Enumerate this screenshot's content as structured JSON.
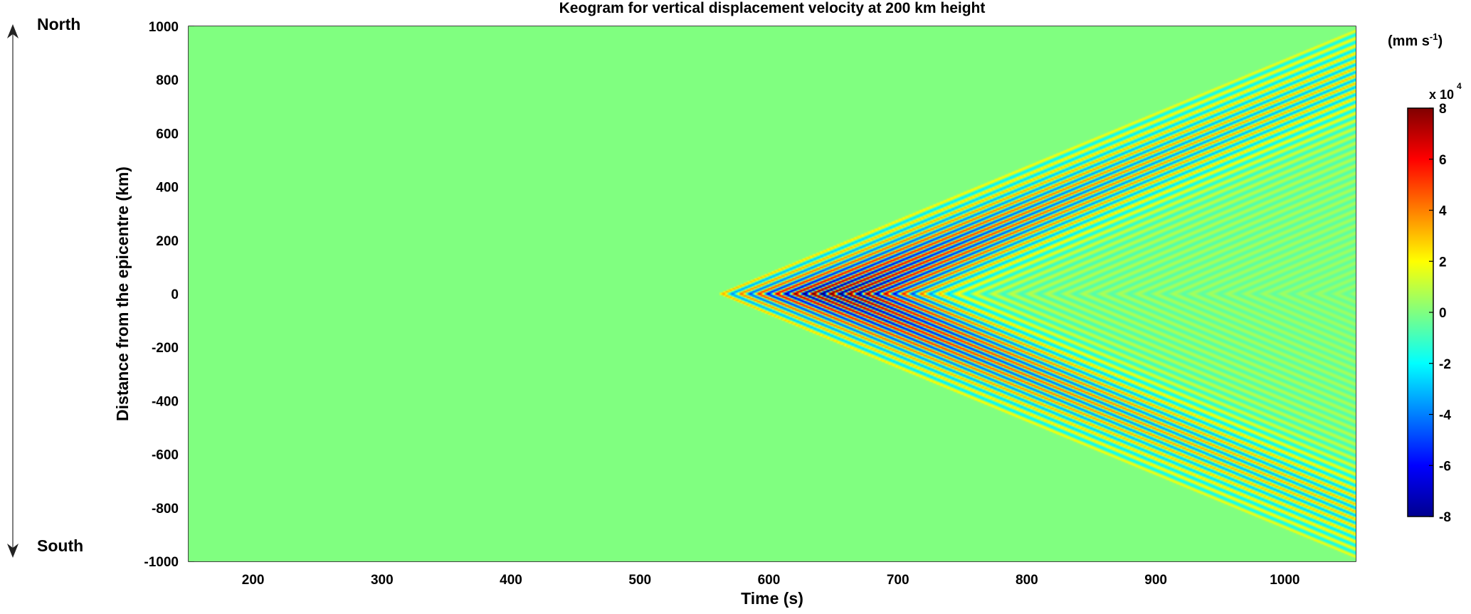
{
  "chart_data": {
    "type": "heatmap",
    "title": "Keogram for vertical displacement velocity at 200 km height",
    "xlabel": "Time (s)",
    "ylabel": "Distance from the epicentre (km)",
    "xlim": [
      150,
      1055
    ],
    "ylim": [
      -1000,
      1000
    ],
    "xticks": [
      200,
      300,
      400,
      500,
      600,
      700,
      800,
      900,
      1000
    ],
    "yticks": [
      1000,
      800,
      600,
      400,
      200,
      0,
      -200,
      -400,
      -600,
      -800,
      -1000
    ],
    "direction_top": "North",
    "direction_bottom": "South",
    "colorbar": {
      "unit_text": "(mm s",
      "unit_exp": "-1",
      "unit_close": ")",
      "multiplier": "x 10",
      "multiplier_exp": "4",
      "range": [
        -8,
        8
      ],
      "ticks": [
        8,
        6,
        4,
        2,
        0,
        -2,
        -4,
        -6,
        -8
      ],
      "colormap": "jet"
    },
    "field": {
      "description_source": "V-shaped wave fronts from the epicentre",
      "arrival_time_at_epicentre_s": 560,
      "apparent_speed_km_per_s": 2.0,
      "wave_period_s": 14,
      "packet_peak_time_s": 650,
      "packet_width_s": 70,
      "peak_amplitude": 8
    }
  }
}
